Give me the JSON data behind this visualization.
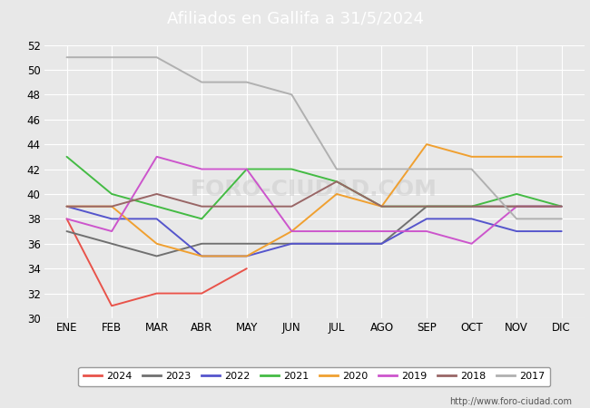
{
  "title": "Afiliados en Gallifa a 31/5/2024",
  "title_bg_color": "#4d8fd4",
  "months": [
    "ENE",
    "FEB",
    "MAR",
    "ABR",
    "MAY",
    "JUN",
    "JUL",
    "AGO",
    "SEP",
    "OCT",
    "NOV",
    "DIC"
  ],
  "series": {
    "2024": {
      "color": "#e8534a",
      "data": [
        38,
        31,
        32,
        32,
        34,
        null,
        null,
        null,
        null,
        null,
        null,
        null
      ]
    },
    "2023": {
      "color": "#707070",
      "data": [
        37,
        36,
        35,
        36,
        36,
        36,
        36,
        36,
        39,
        39,
        39,
        39
      ]
    },
    "2022": {
      "color": "#5555cc",
      "data": [
        39,
        38,
        38,
        35,
        35,
        36,
        36,
        36,
        38,
        38,
        37,
        37
      ]
    },
    "2021": {
      "color": "#44bb44",
      "data": [
        43,
        40,
        39,
        38,
        42,
        42,
        41,
        39,
        39,
        39,
        40,
        39
      ]
    },
    "2020": {
      "color": "#f0a030",
      "data": [
        39,
        39,
        36,
        35,
        35,
        37,
        40,
        39,
        44,
        43,
        43,
        43
      ]
    },
    "2019": {
      "color": "#cc55cc",
      "data": [
        38,
        37,
        43,
        42,
        42,
        37,
        37,
        37,
        37,
        36,
        39,
        39
      ]
    },
    "2018": {
      "color": "#996666",
      "data": [
        39,
        39,
        40,
        39,
        39,
        39,
        41,
        39,
        39,
        39,
        39,
        39
      ]
    },
    "2017": {
      "color": "#b0b0b0",
      "data": [
        51,
        51,
        51,
        49,
        49,
        48,
        42,
        42,
        42,
        42,
        38,
        38
      ]
    }
  },
  "legend_order": [
    "2024",
    "2023",
    "2022",
    "2021",
    "2020",
    "2019",
    "2018",
    "2017"
  ],
  "ylim": [
    30,
    52
  ],
  "yticks": [
    30,
    32,
    34,
    36,
    38,
    40,
    42,
    44,
    46,
    48,
    50,
    52
  ],
  "url": "http://www.foro-ciudad.com",
  "bg_color": "#e8e8e8",
  "plot_bg_color": "#e8e8e8",
  "grid_color": "#ffffff",
  "linewidth": 1.4,
  "title_fontsize": 13,
  "tick_fontsize": 8.5,
  "legend_fontsize": 8
}
